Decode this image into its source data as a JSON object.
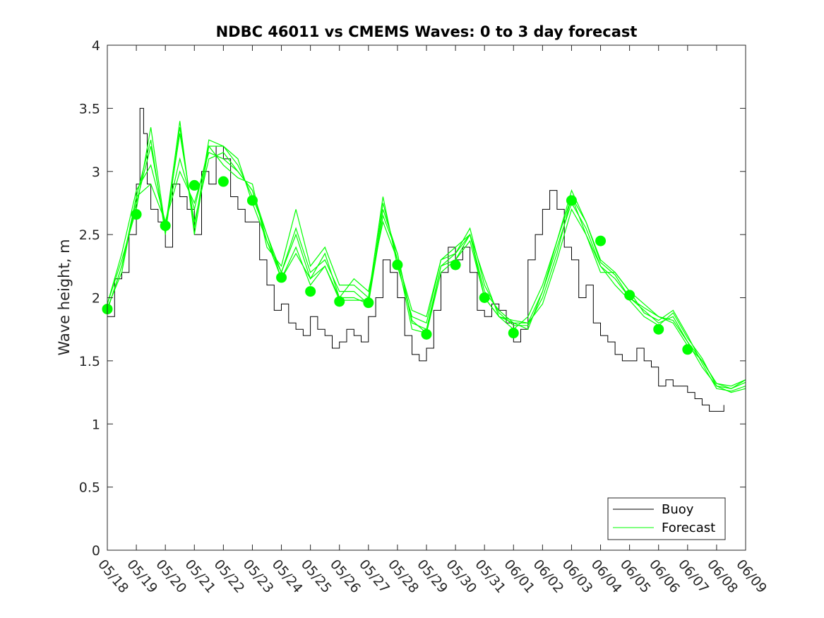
{
  "chart_data": {
    "type": "line",
    "title": "NDBC 46011 vs CMEMS Waves: 0 to 3 day forecast",
    "xlabel": "",
    "ylabel": "Wave height, m",
    "ylim": [
      0,
      4
    ],
    "yticks": [
      0,
      0.5,
      1,
      1.5,
      2,
      2.5,
      3,
      3.5,
      4
    ],
    "ytick_labels": [
      "0",
      "0.5",
      "1",
      "1.5",
      "2",
      "2.5",
      "3",
      "3.5",
      "4"
    ],
    "xlim": [
      "2018-05-18",
      "2018-06-09"
    ],
    "xticks": [
      "2018-05-18",
      "2018-05-19",
      "2018-05-20",
      "2018-05-21",
      "2018-05-22",
      "2018-05-23",
      "2018-05-24",
      "2018-05-25",
      "2018-05-26",
      "2018-05-27",
      "2018-05-28",
      "2018-05-29",
      "2018-05-30",
      "2018-05-31",
      "2018-06-01",
      "2018-06-02",
      "2018-06-03",
      "2018-06-04",
      "2018-06-05",
      "2018-06-06",
      "2018-06-07",
      "2018-06-08",
      "2018-06-09"
    ],
    "xtick_labels": [
      "05/18",
      "05/19",
      "05/20",
      "05/21",
      "05/22",
      "05/23",
      "05/24",
      "05/25",
      "05/26",
      "05/27",
      "05/28",
      "05/29",
      "05/30",
      "05/31",
      "06/01",
      "06/02",
      "06/03",
      "06/04",
      "06/05",
      "06/06",
      "06/07",
      "06/08",
      "06/09"
    ],
    "legend": {
      "placement": "bottom-right",
      "entries": [
        {
          "label": "Buoy",
          "color": "#000000"
        },
        {
          "label": "Forecast",
          "color": "#00ff00"
        }
      ]
    },
    "colors": {
      "buoy": "#000000",
      "forecast": "#00ff00"
    },
    "buoy": {
      "name": "Buoy",
      "x": [
        "2018-05-18T00:00",
        "2018-05-18T06:00",
        "2018-05-18T12:00",
        "2018-05-18T18:00",
        "2018-05-19T00:00",
        "2018-05-19T03:00",
        "2018-05-19T06:00",
        "2018-05-19T09:00",
        "2018-05-19T12:00",
        "2018-05-19T18:00",
        "2018-05-20T00:00",
        "2018-05-20T06:00",
        "2018-05-20T12:00",
        "2018-05-20T18:00",
        "2018-05-21T00:00",
        "2018-05-21T06:00",
        "2018-05-21T12:00",
        "2018-05-21T18:00",
        "2018-05-22T00:00",
        "2018-05-22T06:00",
        "2018-05-22T12:00",
        "2018-05-22T18:00",
        "2018-05-23T00:00",
        "2018-05-23T06:00",
        "2018-05-23T12:00",
        "2018-05-23T18:00",
        "2018-05-24T00:00",
        "2018-05-24T06:00",
        "2018-05-24T12:00",
        "2018-05-24T18:00",
        "2018-05-25T00:00",
        "2018-05-25T06:00",
        "2018-05-25T12:00",
        "2018-05-25T18:00",
        "2018-05-26T00:00",
        "2018-05-26T06:00",
        "2018-05-26T12:00",
        "2018-05-26T18:00",
        "2018-05-27T00:00",
        "2018-05-27T06:00",
        "2018-05-27T12:00",
        "2018-05-27T18:00",
        "2018-05-28T00:00",
        "2018-05-28T06:00",
        "2018-05-28T12:00",
        "2018-05-28T18:00",
        "2018-05-29T00:00",
        "2018-05-29T06:00",
        "2018-05-29T12:00",
        "2018-05-29T18:00",
        "2018-05-30T00:00",
        "2018-05-30T06:00",
        "2018-05-30T12:00",
        "2018-05-30T18:00",
        "2018-05-31T00:00",
        "2018-05-31T06:00",
        "2018-05-31T12:00",
        "2018-05-31T18:00",
        "2018-06-01T00:00",
        "2018-06-01T06:00",
        "2018-06-01T12:00",
        "2018-06-01T18:00",
        "2018-06-02T00:00",
        "2018-06-02T06:00",
        "2018-06-02T12:00",
        "2018-06-02T18:00",
        "2018-06-03T00:00",
        "2018-06-03T06:00",
        "2018-06-03T12:00",
        "2018-06-03T18:00",
        "2018-06-04T00:00",
        "2018-06-04T06:00",
        "2018-06-04T12:00",
        "2018-06-04T18:00",
        "2018-06-05T00:00",
        "2018-06-05T06:00",
        "2018-06-05T12:00",
        "2018-06-05T18:00",
        "2018-06-06T00:00",
        "2018-06-06T06:00",
        "2018-06-06T12:00",
        "2018-06-06T18:00",
        "2018-06-07T00:00",
        "2018-06-07T06:00",
        "2018-06-07T12:00",
        "2018-06-07T18:00",
        "2018-06-08T00:00",
        "2018-06-08T06:00"
      ],
      "y": [
        1.85,
        2.15,
        2.2,
        2.5,
        2.9,
        3.5,
        3.3,
        2.9,
        2.7,
        2.6,
        2.4,
        2.9,
        2.8,
        2.7,
        2.5,
        3.0,
        2.9,
        3.2,
        3.1,
        2.8,
        2.7,
        2.6,
        2.6,
        2.3,
        2.1,
        1.9,
        1.95,
        1.8,
        1.75,
        1.7,
        1.85,
        1.75,
        1.7,
        1.6,
        1.65,
        1.75,
        1.7,
        1.65,
        1.85,
        2.0,
        2.3,
        2.2,
        2.0,
        1.7,
        1.55,
        1.5,
        1.6,
        1.9,
        2.2,
        2.4,
        2.3,
        2.4,
        2.2,
        1.9,
        1.85,
        1.95,
        1.9,
        1.8,
        1.65,
        1.75,
        2.3,
        2.5,
        2.7,
        2.85,
        2.7,
        2.4,
        2.3,
        2.0,
        2.1,
        1.8,
        1.7,
        1.65,
        1.55,
        1.5,
        1.5,
        1.6,
        1.5,
        1.45,
        1.3,
        1.35,
        1.3,
        1.3,
        1.25,
        1.2,
        1.15,
        1.1,
        1.1,
        1.15
      ]
    },
    "forecast_markers": {
      "name": "Forecast",
      "x": [
        "2018-05-18",
        "2018-05-19",
        "2018-05-20",
        "2018-05-21",
        "2018-05-22",
        "2018-05-23",
        "2018-05-24",
        "2018-05-25",
        "2018-05-26",
        "2018-05-27",
        "2018-05-28",
        "2018-05-29",
        "2018-05-30",
        "2018-05-31",
        "2018-06-01",
        "2018-06-03",
        "2018-06-04",
        "2018-06-05",
        "2018-06-06",
        "2018-06-07"
      ],
      "y": [
        1.91,
        2.66,
        2.57,
        2.89,
        2.92,
        2.77,
        2.16,
        2.05,
        1.97,
        1.96,
        2.26,
        1.71,
        2.26,
        2.0,
        1.72,
        2.77,
        2.45,
        2.02,
        1.75,
        1.59
      ]
    },
    "forecast_ensemble": {
      "x": [
        "2018-05-18T00:00",
        "2018-05-18T12:00",
        "2018-05-19T00:00",
        "2018-05-19T12:00",
        "2018-05-20T00:00",
        "2018-05-20T12:00",
        "2018-05-21T00:00",
        "2018-05-21T12:00",
        "2018-05-22T00:00",
        "2018-05-22T12:00",
        "2018-05-23T00:00",
        "2018-05-23T12:00",
        "2018-05-24T00:00",
        "2018-05-24T12:00",
        "2018-05-25T00:00",
        "2018-05-25T12:00",
        "2018-05-26T00:00",
        "2018-05-26T12:00",
        "2018-05-27T00:00",
        "2018-05-27T12:00",
        "2018-05-28T00:00",
        "2018-05-28T12:00",
        "2018-05-29T00:00",
        "2018-05-29T12:00",
        "2018-05-30T00:00",
        "2018-05-30T12:00",
        "2018-05-31T00:00",
        "2018-05-31T12:00",
        "2018-06-01T00:00",
        "2018-06-01T12:00",
        "2018-06-02T00:00",
        "2018-06-02T12:00",
        "2018-06-03T00:00",
        "2018-06-03T12:00",
        "2018-06-04T00:00",
        "2018-06-04T12:00",
        "2018-06-05T00:00",
        "2018-06-05T12:00",
        "2018-06-06T00:00",
        "2018-06-06T12:00",
        "2018-06-07T00:00",
        "2018-06-07T12:00",
        "2018-06-08T00:00",
        "2018-06-08T12:00",
        "2018-06-09T00:00"
      ],
      "series": [
        {
          "y": [
            1.95,
            2.3,
            2.7,
            3.35,
            2.55,
            3.4,
            2.5,
            3.2,
            3.2,
            3.05,
            2.8,
            2.5,
            2.15,
            2.35,
            2.15,
            2.25,
            2.0,
            2.0,
            1.95,
            2.75,
            2.3,
            1.75,
            1.72,
            2.2,
            2.3,
            2.45,
            2.0,
            1.85,
            1.75,
            1.85,
            2.1,
            2.45,
            2.8,
            2.6,
            2.3,
            2.2,
            2.05,
            1.95,
            1.85,
            1.8,
            1.62,
            1.5,
            1.32,
            1.3,
            1.35
          ]
        },
        {
          "y": [
            1.9,
            2.25,
            2.75,
            3.2,
            2.55,
            3.3,
            2.6,
            3.1,
            3.15,
            3.0,
            2.85,
            2.45,
            2.2,
            2.55,
            2.2,
            2.3,
            2.05,
            2.05,
            1.95,
            2.65,
            2.35,
            1.8,
            1.75,
            2.25,
            2.3,
            2.5,
            2.05,
            1.9,
            1.8,
            1.8,
            2.05,
            2.4,
            2.75,
            2.55,
            2.25,
            2.15,
            2.0,
            1.9,
            1.8,
            1.85,
            1.65,
            1.45,
            1.3,
            1.28,
            1.33
          ]
        },
        {
          "y": [
            1.95,
            2.35,
            2.85,
            3.05,
            2.6,
            3.1,
            2.7,
            3.2,
            3.05,
            2.95,
            2.9,
            2.4,
            2.25,
            2.7,
            2.25,
            2.4,
            2.1,
            2.1,
            2.0,
            2.8,
            2.25,
            1.85,
            1.8,
            2.3,
            2.35,
            2.55,
            2.1,
            1.88,
            1.78,
            1.78,
            2.0,
            2.35,
            2.8,
            2.5,
            2.2,
            2.2,
            2.05,
            1.88,
            1.82,
            1.9,
            1.7,
            1.48,
            1.28,
            1.26,
            1.3
          ]
        },
        {
          "y": [
            1.92,
            2.2,
            2.8,
            2.9,
            2.6,
            3.0,
            2.75,
            3.15,
            3.1,
            3.0,
            2.85,
            2.5,
            2.2,
            2.5,
            2.15,
            2.35,
            2.0,
            2.15,
            2.05,
            2.6,
            2.3,
            1.9,
            1.85,
            2.3,
            2.4,
            2.5,
            2.15,
            1.85,
            1.82,
            1.8,
            1.95,
            2.3,
            2.7,
            2.5,
            2.25,
            2.1,
            1.98,
            1.85,
            1.78,
            1.88,
            1.68,
            1.52,
            1.3,
            1.25,
            1.28
          ]
        },
        {
          "y": [
            1.9,
            2.25,
            2.8,
            3.25,
            2.5,
            3.35,
            2.55,
            3.25,
            3.2,
            3.1,
            2.75,
            2.45,
            2.15,
            2.4,
            2.1,
            2.25,
            1.98,
            1.98,
            1.98,
            2.7,
            2.35,
            1.82,
            1.72,
            2.25,
            2.35,
            2.5,
            2.0,
            1.85,
            1.8,
            1.75,
            2.05,
            2.45,
            2.85,
            2.6,
            2.28,
            2.18,
            2.0,
            1.92,
            1.85,
            1.82,
            1.65,
            1.5,
            1.32,
            1.28,
            1.35
          ]
        }
      ]
    }
  }
}
